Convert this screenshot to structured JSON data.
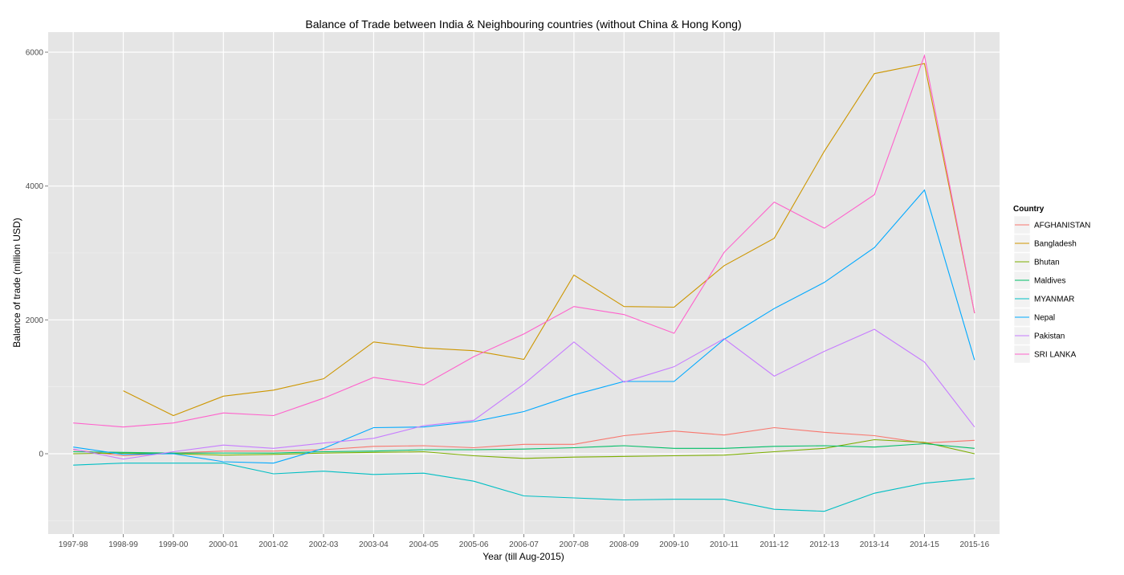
{
  "chart_data": {
    "type": "line",
    "title": "Balance of Trade between India & Neighbouring countries (without China & Hong Kong)",
    "xlabel": "Year (till Aug-2015)",
    "ylabel": "Balance of trade (million USD)",
    "categories": [
      "1997-98",
      "1998-99",
      "1999-00",
      "2000-01",
      "2001-02",
      "2002-03",
      "2003-04",
      "2004-05",
      "2005-06",
      "2006-07",
      "2007-08",
      "2008-09",
      "2009-10",
      "2010-11",
      "2011-12",
      "2012-13",
      "2013-14",
      "2014-15",
      "2015-16"
    ],
    "ylim": [
      -1200,
      6300
    ],
    "yticks": [
      0,
      2000,
      4000,
      6000
    ],
    "grid": true,
    "legend": {
      "title": "Country",
      "position": "right"
    },
    "series": [
      {
        "name": "AFGHANISTAN",
        "color": "#F8766D",
        "values": [
          60,
          -30,
          10,
          40,
          40,
          60,
          110,
          120,
          90,
          140,
          140,
          270,
          340,
          280,
          390,
          320,
          270,
          160,
          200
        ]
      },
      {
        "name": "Bangladesh",
        "color": "#CD9600",
        "values": [
          null,
          940,
          570,
          860,
          950,
          1120,
          1670,
          1580,
          1540,
          1410,
          2670,
          2200,
          2190,
          2810,
          3220,
          4520,
          5680,
          5830,
          2100
        ]
      },
      {
        "name": "Bhutan",
        "color": "#7CAE00",
        "values": [
          0,
          10,
          0,
          -20,
          -10,
          10,
          20,
          30,
          -30,
          -70,
          -50,
          -40,
          -30,
          -20,
          30,
          80,
          210,
          170,
          0
        ]
      },
      {
        "name": "Maldives",
        "color": "#00BE67",
        "values": [
          30,
          20,
          10,
          10,
          10,
          30,
          40,
          60,
          60,
          70,
          90,
          120,
          80,
          80,
          110,
          120,
          100,
          150,
          80
        ]
      },
      {
        "name": "MYANMAR",
        "color": "#00BFC4",
        "values": [
          -170,
          -140,
          -140,
          -140,
          -300,
          -260,
          -310,
          -290,
          -410,
          -630,
          -660,
          -690,
          -680,
          -680,
          -830,
          -860,
          -590,
          -440,
          -370
        ]
      },
      {
        "name": "Nepal",
        "color": "#00A9FF",
        "values": [
          100,
          -10,
          0,
          -120,
          -140,
          80,
          390,
          400,
          480,
          630,
          880,
          1080,
          1080,
          1710,
          2170,
          2560,
          3080,
          3940,
          1400
        ]
      },
      {
        "name": "Pakistan",
        "color": "#C77CFF",
        "values": [
          70,
          -80,
          30,
          130,
          80,
          160,
          230,
          420,
          500,
          1040,
          1670,
          1070,
          1300,
          1720,
          1160,
          1530,
          1860,
          1370,
          400
        ]
      },
      {
        "name": "SRI LANKA",
        "color": "#FF61CC",
        "values": [
          460,
          400,
          460,
          610,
          570,
          830,
          1140,
          1030,
          1450,
          1790,
          2200,
          2080,
          1800,
          3010,
          3760,
          3370,
          3870,
          5950,
          2100
        ]
      }
    ]
  }
}
